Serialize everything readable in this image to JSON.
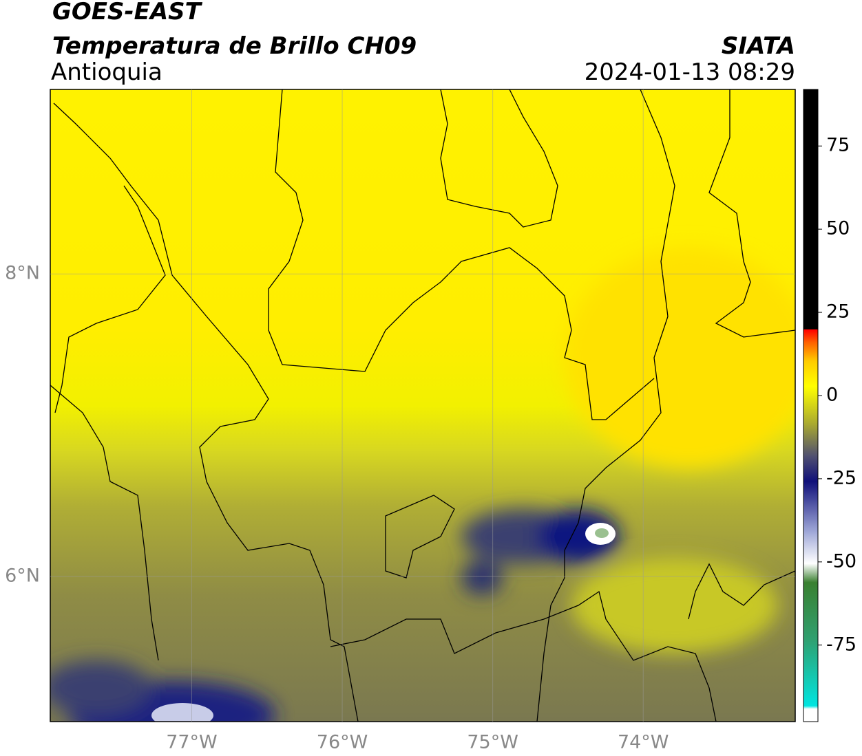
{
  "header": {
    "satellite": "GOES-EAST",
    "product": "Temperatura de Brillo CH09",
    "region": "Antioquia",
    "source": "SIATA",
    "timestamp": "2024-01-13 08:29"
  },
  "map": {
    "xlim": [
      -77.94,
      -72.99
    ],
    "ylim": [
      5.04,
      9.22
    ],
    "xticks": [
      {
        "value": -77,
        "label": "77°W"
      },
      {
        "value": -76,
        "label": "76°W"
      },
      {
        "value": -75,
        "label": "75°W"
      },
      {
        "value": -74,
        "label": "74°W"
      }
    ],
    "yticks": [
      {
        "value": 6,
        "label": "6°N"
      },
      {
        "value": 8,
        "label": "8°N"
      }
    ],
    "grid": true
  },
  "colorbar": {
    "lim": [
      -98,
      92
    ],
    "ticks": [
      75,
      50,
      25,
      0,
      -25,
      -50,
      -75
    ]
  }
}
